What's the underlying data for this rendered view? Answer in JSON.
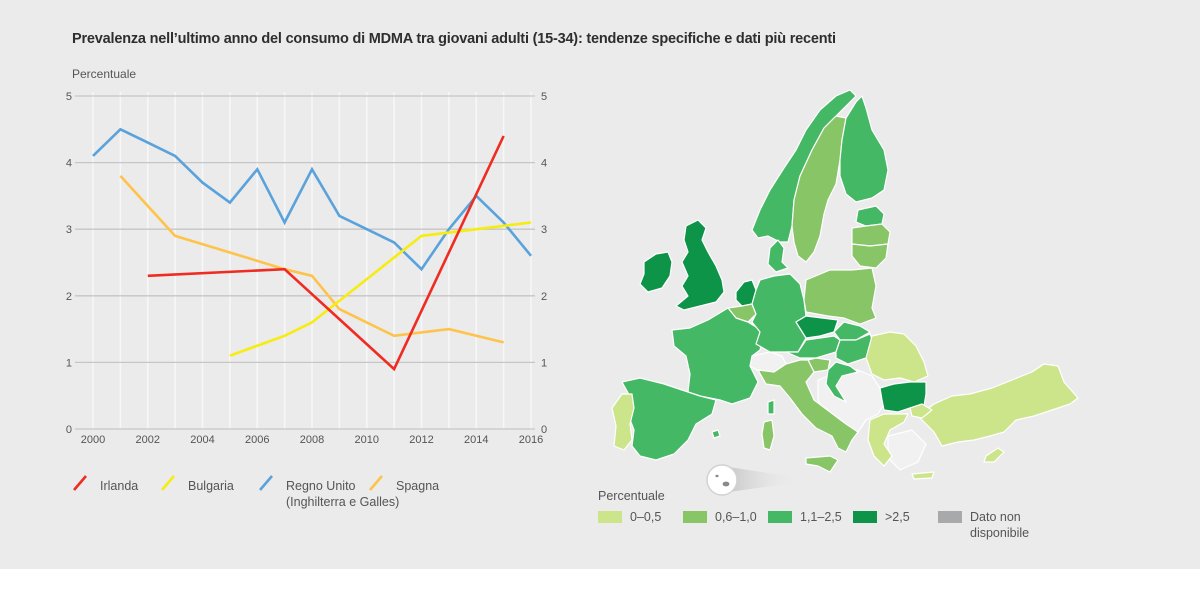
{
  "title": "Prevalenza nell’ultimo anno del consumo di MDMA tra giovani adulti (15-34): tendenze specifiche e dati più recenti",
  "chart_data": [
    {
      "type": "line",
      "ylabel": "Percentuale",
      "xlabel": "",
      "xlim": [
        2000,
        2016
      ],
      "ylim": [
        0,
        5
      ],
      "x_ticks": [
        "2000",
        "2002",
        "2004",
        "2006",
        "2008",
        "2010",
        "2012",
        "2014",
        "2016"
      ],
      "y_ticks": [
        "0",
        "1",
        "2",
        "3",
        "4",
        "5"
      ],
      "grid": true,
      "legend_position": "bottom",
      "series": [
        {
          "name": "Irlanda",
          "color": "#ef2b22",
          "x": [
            2002,
            2007,
            2011,
            2015
          ],
          "values": [
            2.3,
            2.4,
            0.9,
            4.4
          ]
        },
        {
          "name": "Bulgaria",
          "color": "#f7ec10",
          "x": [
            2005,
            2007,
            2008,
            2012,
            2016
          ],
          "values": [
            1.1,
            1.4,
            1.6,
            2.9,
            3.1
          ]
        },
        {
          "name": "Regno Unito (Inghilterra e Galles)",
          "label_lines": [
            "Regno Unito",
            "(Inghilterra e Galles)"
          ],
          "color": "#5aa2dc",
          "x": [
            2000,
            2001,
            2002,
            2003,
            2004,
            2005,
            2006,
            2007,
            2008,
            2009,
            2010,
            2011,
            2012,
            2013,
            2014,
            2015,
            2016
          ],
          "values": [
            4.1,
            4.5,
            4.3,
            4.1,
            3.7,
            3.4,
            3.9,
            3.1,
            3.9,
            3.2,
            3.0,
            2.8,
            2.4,
            3.0,
            3.5,
            3.1,
            2.6
          ]
        },
        {
          "name": "Spagna",
          "color": "#fdc34b",
          "x": [
            2001,
            2003,
            2005,
            2007,
            2008,
            2009,
            2011,
            2013,
            2015
          ],
          "values": [
            3.8,
            2.9,
            2.65,
            2.4,
            2.3,
            1.8,
            1.4,
            1.5,
            1.3
          ]
        }
      ]
    },
    {
      "type": "choropleth-map",
      "legend_title": "Percentuale",
      "classes": [
        {
          "key": "c1",
          "label": "0–0,5",
          "color": "#cce58a"
        },
        {
          "key": "c2",
          "label": "0,6–1,0",
          "color": "#87c566"
        },
        {
          "key": "c3",
          "label": "1,1–2,5",
          "color": "#44b864"
        },
        {
          "key": "c4",
          "label": ">2,5",
          "color": "#0d9448"
        },
        {
          "key": "na",
          "label": "Dato non disponibile",
          "label_lines": [
            "Dato non",
            "disponibile"
          ],
          "color": "#a8a9ab"
        }
      ],
      "countries": {
        "Irlanda": "c4",
        "Regno Unito": "c4",
        "Paesi Bassi": "c4",
        "Repubblica Ceca": "c4",
        "Bulgaria": "c4",
        "Norvegia": "c3",
        "Finlandia": "c3",
        "Estonia": "c3",
        "Danimarca": "c3",
        "Germania": "c3",
        "Francia": "c3",
        "Spagna": "c3",
        "Austria": "c3",
        "Slovacchia": "c3",
        "Ungheria": "c3",
        "Croazia": "c3",
        "Svezia": "c2",
        "Lettonia": "c2",
        "Lituania": "c2",
        "Polonia": "c2",
        "Belgio": "c2",
        "Italia": "c2",
        "Slovenia": "c2",
        "Portogallo": "c1",
        "Romania": "c1",
        "Turchia": "c1",
        "Grecia": "c1",
        "Cipro": "c1",
        "Malta": "na"
      }
    }
  ]
}
